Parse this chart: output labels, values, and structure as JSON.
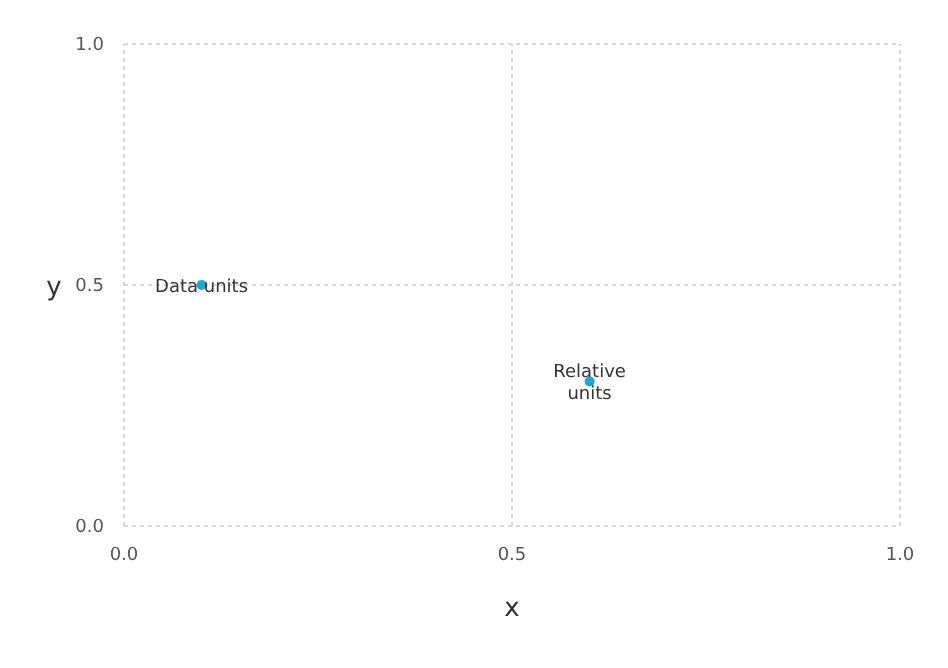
{
  "chart_data": {
    "type": "scatter",
    "xlabel": "x",
    "ylabel": "y",
    "x": [
      0.1,
      0.6
    ],
    "values": [
      0.5,
      0.3
    ],
    "color": "#1ea7d6",
    "xlim": [
      0,
      1
    ],
    "ylim": [
      0,
      1
    ],
    "xticks": [
      {
        "value": 0,
        "label": "0.0"
      },
      {
        "value": 0.5,
        "label": "0.5"
      },
      {
        "value": 1,
        "label": "1.0"
      }
    ],
    "yticks": [
      {
        "value": 0,
        "label": "0.0"
      },
      {
        "value": 0.5,
        "label": "0.5"
      },
      {
        "value": 1,
        "label": "1.0"
      }
    ],
    "grid": true,
    "marker": "circle",
    "annotations": [
      {
        "text": "Data units",
        "x": 0.1,
        "y": 0.5
      },
      {
        "text": "Relative\nunits",
        "x": 0.6,
        "y": 0.3
      }
    ]
  }
}
